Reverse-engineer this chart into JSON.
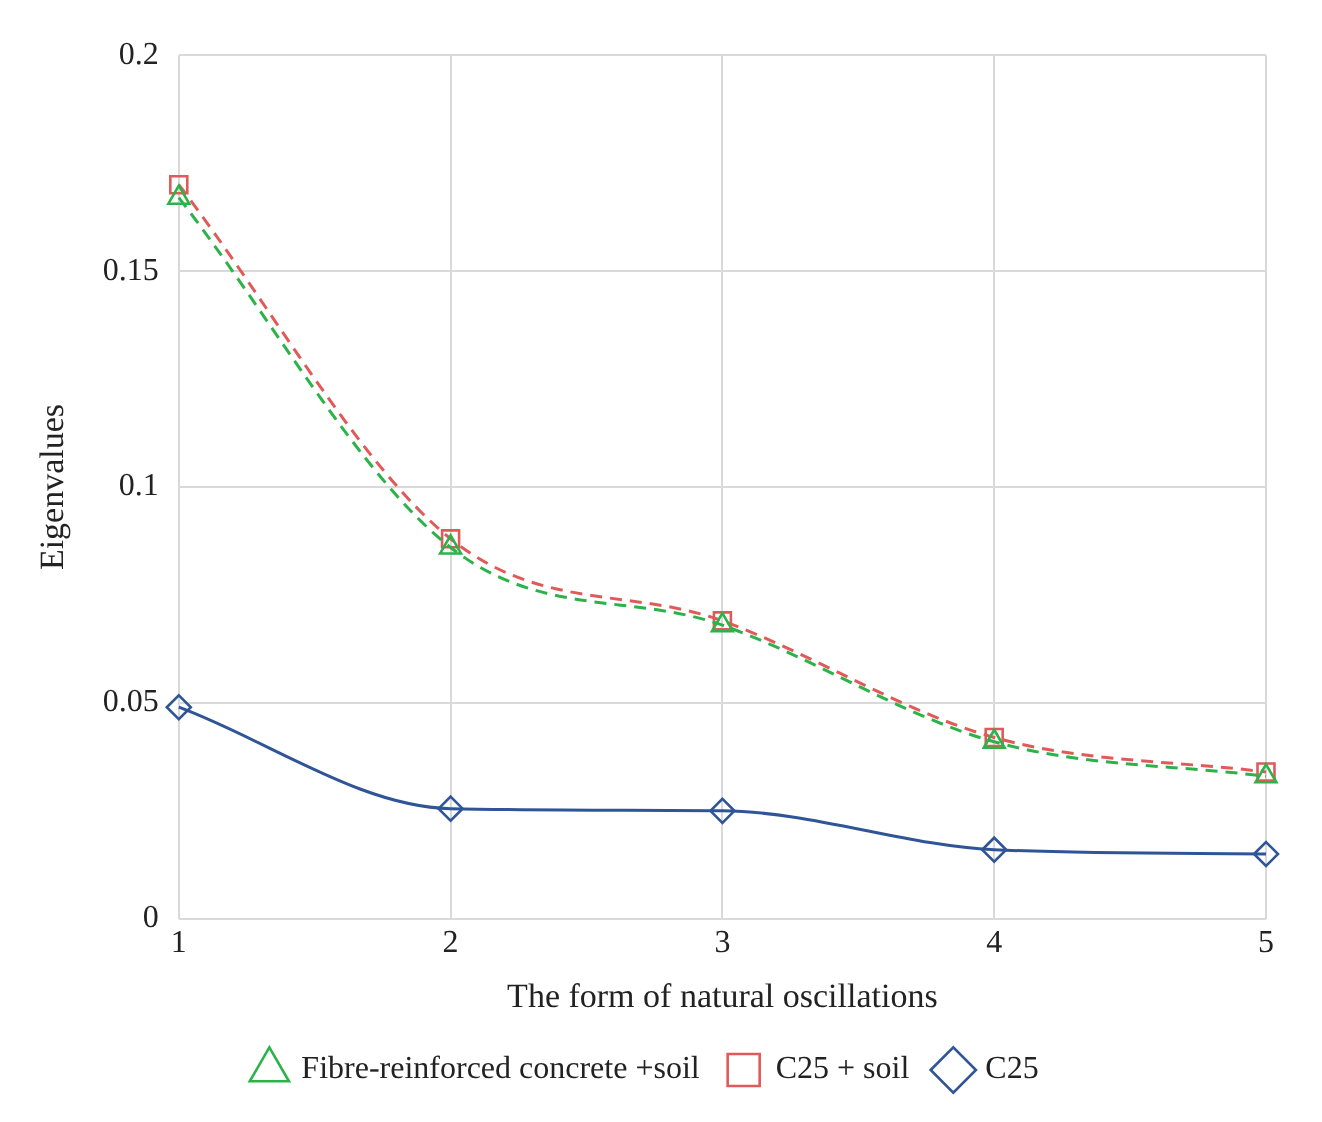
{
  "chart_data": {
    "type": "line",
    "xlabel": "The form of natural oscillations",
    "ylabel": "Eigenvalues",
    "x": [
      1,
      2,
      3,
      4,
      5
    ],
    "xlim": [
      1,
      5
    ],
    "xticks": [
      1,
      2,
      3,
      4,
      5
    ],
    "ylim": [
      0,
      0.2
    ],
    "yticks": [
      0,
      0.05,
      0.1,
      0.15,
      0.2
    ],
    "grid": true,
    "legend": "bottom",
    "series": [
      {
        "name": "C25",
        "color": "#2f5597",
        "values": [
          0.049,
          0.0255,
          0.025,
          0.016,
          0.015
        ],
        "marker": "diamond",
        "line_style": "solid"
      },
      {
        "name": "C25 + soil",
        "color": "#e05a5a",
        "values": [
          0.17,
          0.088,
          0.069,
          0.042,
          0.034
        ],
        "marker": "square",
        "line_style": "dashed"
      },
      {
        "name": "Fibre-reinforced concrete +soil",
        "color": "#2bb34a",
        "values": [
          0.167,
          0.086,
          0.068,
          0.041,
          0.033
        ],
        "marker": "triangle",
        "line_style": "dashed"
      }
    ]
  }
}
